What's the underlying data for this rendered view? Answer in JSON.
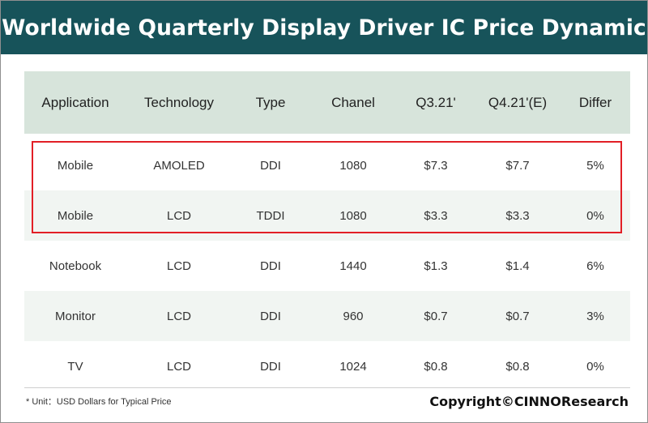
{
  "title": "Worldwide Quarterly Display Driver IC Price Dynamic",
  "chart_data": {
    "type": "table",
    "columns": [
      "Application",
      "Technology",
      "Type",
      "Chanel",
      "Q3.21'",
      "Q4.21'(E)",
      "Differ"
    ],
    "rows": [
      [
        "Mobile",
        "AMOLED",
        "DDI",
        "1080",
        "$7.3",
        "$7.7",
        "5%"
      ],
      [
        "Mobile",
        "LCD",
        "TDDI",
        "1080",
        "$3.3",
        "$3.3",
        "0%"
      ],
      [
        "Notebook",
        "LCD",
        "DDI",
        "1440",
        "$1.3",
        "$1.4",
        "6%"
      ],
      [
        "Monitor",
        "LCD",
        "DDI",
        "960",
        "$0.7",
        "$0.7",
        "3%"
      ],
      [
        "TV",
        "LCD",
        "DDI",
        "1024",
        "$0.8",
        "$0.8",
        "0%"
      ]
    ],
    "highlighted_rows": [
      0,
      1
    ],
    "highlight_color": "#e21f26",
    "header_color": "#d7e4db",
    "shade_color": "#f1f5f2"
  },
  "footnote": "* Unit：USD Dollars for Typical Price",
  "copyright": "Copyright©CINNOResearch",
  "colors": {
    "title_bar": "#17535a",
    "title_text": "#ffffff"
  }
}
